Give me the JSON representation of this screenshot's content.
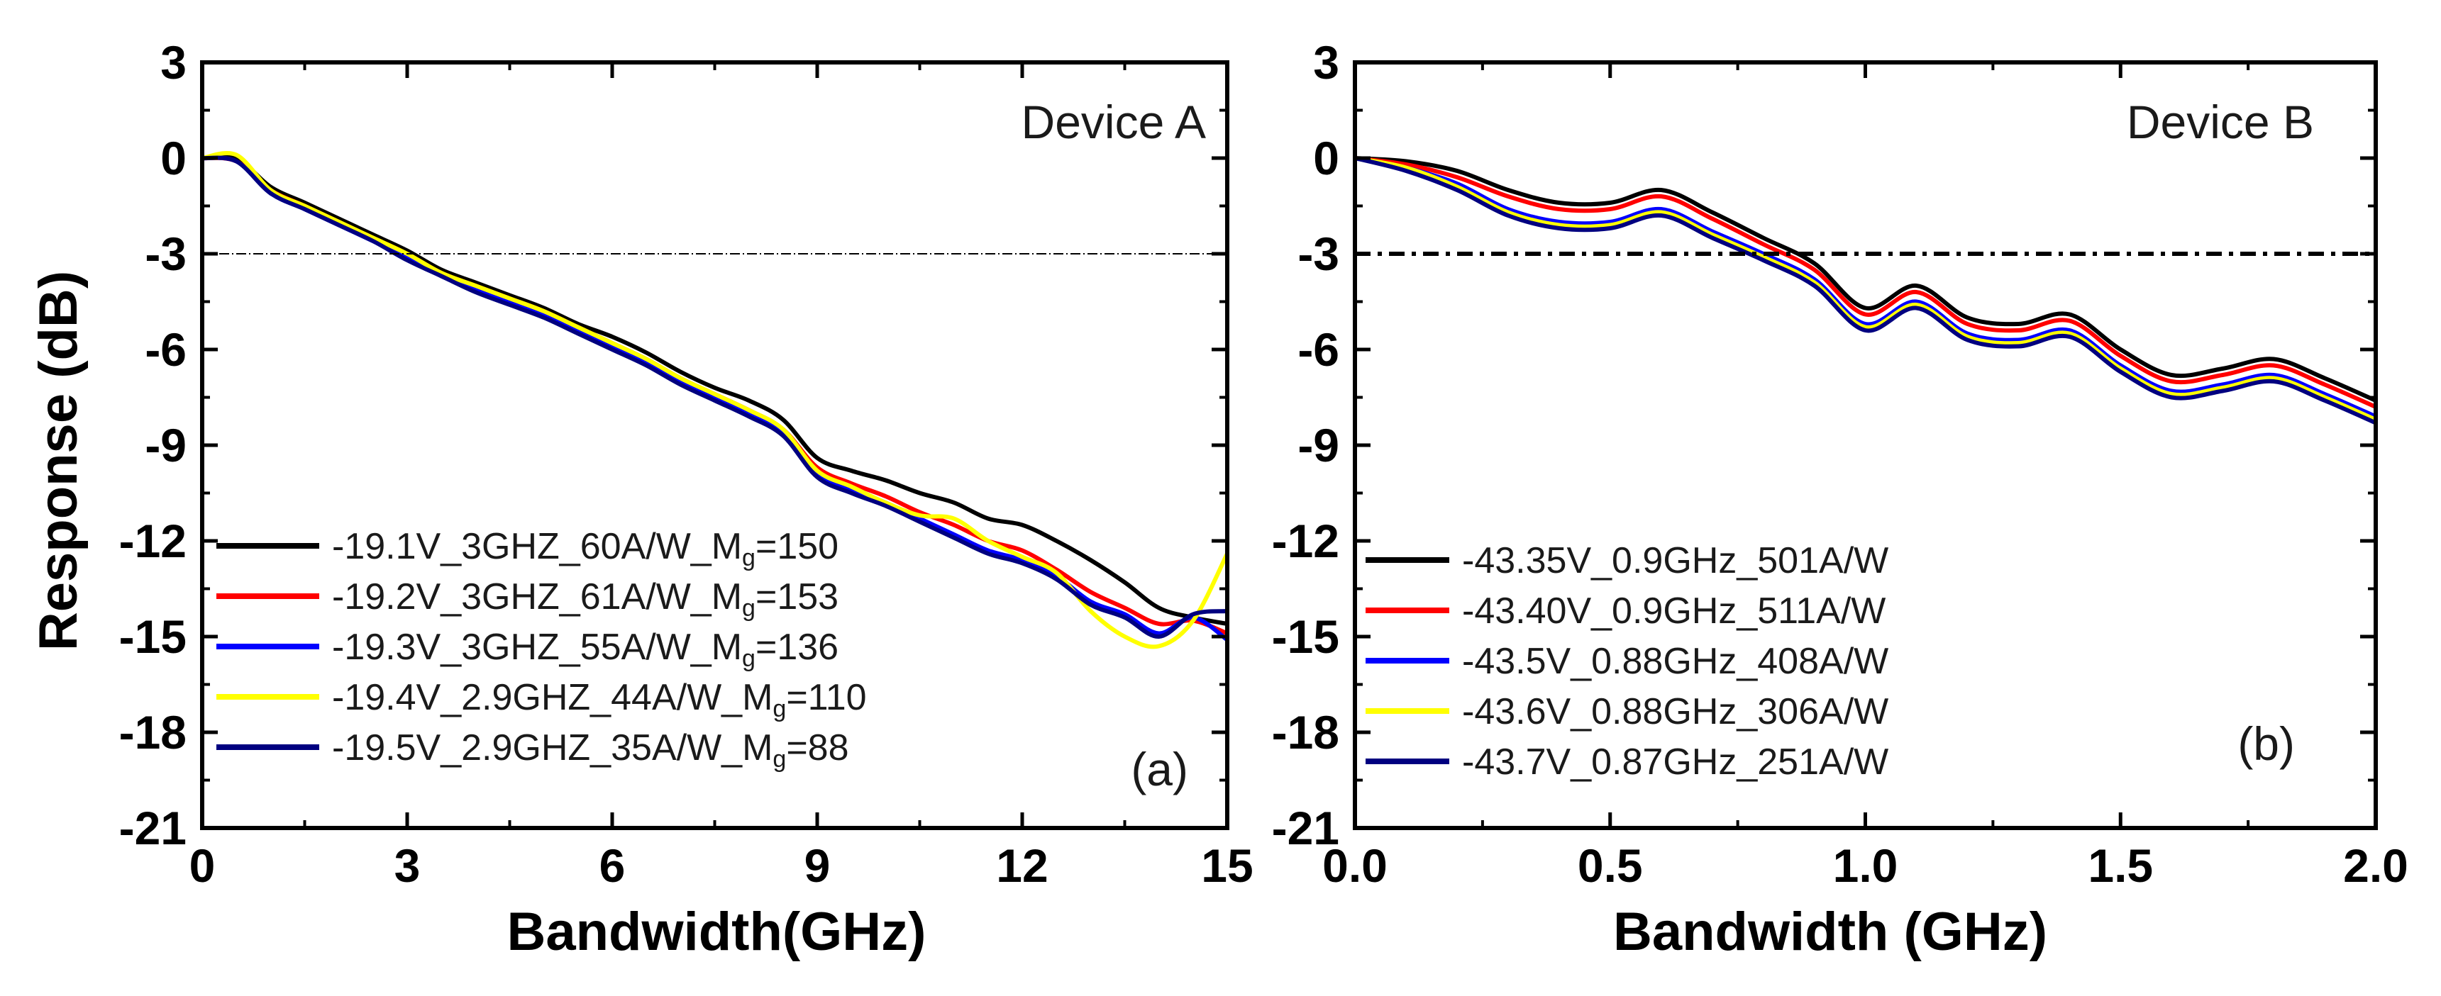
{
  "chart_data": [
    {
      "type": "line",
      "panel_label": "(a)",
      "annotation": "Device A",
      "xlabel": "Bandwidth(GHz)",
      "ylabel": "Response (dB)",
      "xlim": [
        0,
        15
      ],
      "ylim": [
        -21,
        3
      ],
      "xticks": [
        0,
        3,
        6,
        9,
        12,
        15
      ],
      "xtick_labels": [
        "0",
        "3",
        "6",
        "9",
        "12",
        "15"
      ],
      "yticks": [
        3,
        0,
        -3,
        -6,
        -9,
        -12,
        -15,
        -18,
        -21
      ],
      "ytick_labels": [
        "3",
        "0",
        "-3",
        "-6",
        "-9",
        "-12",
        "-15",
        "-18",
        "-21"
      ],
      "reference_line": {
        "y": -3,
        "style": "dash-dot-thin"
      },
      "legend_position": "bottom-left",
      "series": [
        {
          "name": "-19.1V_3GHZ_60A/W_M",
          "sub": "g",
          "tail": "=150",
          "color": "#000000",
          "x": [
            0,
            0.5,
            1,
            1.5,
            2,
            2.5,
            3,
            3.5,
            4,
            4.5,
            5,
            5.5,
            6,
            6.5,
            7,
            7.5,
            8,
            8.5,
            9,
            9.5,
            10,
            10.5,
            11,
            11.5,
            12,
            12.5,
            13,
            13.5,
            14,
            14.5,
            15
          ],
          "y": [
            0.0,
            0.0,
            -0.9,
            -1.4,
            -1.9,
            -2.4,
            -2.9,
            -3.5,
            -3.9,
            -4.3,
            -4.7,
            -5.2,
            -5.6,
            -6.1,
            -6.7,
            -7.2,
            -7.6,
            -8.2,
            -9.4,
            -9.8,
            -10.1,
            -10.5,
            -10.8,
            -11.3,
            -11.5,
            -12.0,
            -12.6,
            -13.3,
            -14.1,
            -14.4,
            -14.6
          ]
        },
        {
          "name": "-19.2V_3GHZ_61A/W_M",
          "sub": "g",
          "tail": "=153",
          "color": "#ff0000",
          "x": [
            0,
            0.5,
            1,
            1.5,
            2,
            2.5,
            3,
            3.5,
            4,
            4.5,
            5,
            5.5,
            6,
            6.5,
            7,
            7.5,
            8,
            8.5,
            9,
            9.5,
            10,
            10.5,
            11,
            11.5,
            12,
            12.5,
            13,
            13.5,
            14,
            14.5,
            15
          ],
          "y": [
            0.0,
            -0.1,
            -1.0,
            -1.5,
            -2.0,
            -2.5,
            -3.0,
            -3.6,
            -4.0,
            -4.4,
            -4.8,
            -5.3,
            -5.8,
            -6.3,
            -6.9,
            -7.4,
            -7.9,
            -8.5,
            -9.7,
            -10.2,
            -10.6,
            -11.1,
            -11.5,
            -12.0,
            -12.3,
            -12.9,
            -13.6,
            -14.1,
            -14.6,
            -14.5,
            -14.9
          ]
        },
        {
          "name": "-19.3V_3GHZ_55A/W_M",
          "sub": "g",
          "tail": "=136",
          "color": "#0000ff",
          "x": [
            0,
            0.5,
            1,
            1.5,
            2,
            2.5,
            3,
            3.5,
            4,
            4.5,
            5,
            5.5,
            6,
            6.5,
            7,
            7.5,
            8,
            8.5,
            9,
            9.5,
            10,
            10.5,
            11,
            11.5,
            12,
            12.5,
            13,
            13.5,
            14,
            14.5,
            15
          ],
          "y": [
            0.0,
            -0.1,
            -1.1,
            -1.6,
            -2.1,
            -2.6,
            -3.1,
            -3.7,
            -4.1,
            -4.5,
            -4.9,
            -5.4,
            -5.9,
            -6.4,
            -7.0,
            -7.5,
            -8.0,
            -8.6,
            -9.9,
            -10.4,
            -10.8,
            -11.3,
            -11.8,
            -12.3,
            -12.6,
            -13.1,
            -13.9,
            -14.3,
            -14.9,
            -14.4,
            -15.1
          ]
        },
        {
          "name": "-19.4V_2.9GHZ_44A/W_M",
          "sub": "g",
          "tail": "=110",
          "color": "#ffff00",
          "x": [
            0,
            0.5,
            1,
            1.5,
            2,
            2.5,
            3,
            3.5,
            4,
            4.5,
            5,
            5.5,
            6,
            6.5,
            7,
            7.5,
            8,
            8.5,
            9,
            9.5,
            10,
            10.5,
            11,
            11.5,
            12,
            12.5,
            13,
            13.5,
            14,
            14.5,
            15
          ],
          "y": [
            0.0,
            0.1,
            -1.0,
            -1.5,
            -2.0,
            -2.5,
            -3.0,
            -3.6,
            -4.0,
            -4.4,
            -4.8,
            -5.3,
            -5.8,
            -6.3,
            -6.9,
            -7.4,
            -7.9,
            -8.5,
            -9.8,
            -10.3,
            -10.8,
            -11.2,
            -11.3,
            -12.0,
            -12.5,
            -13.0,
            -14.2,
            -15.0,
            -15.3,
            -14.5,
            -12.4
          ]
        },
        {
          "name": "-19.5V_2.9GHZ_35A/W_M",
          "sub": "g",
          "tail": "=88",
          "color": "#000080",
          "x": [
            0,
            0.5,
            1,
            1.5,
            2,
            2.5,
            3,
            3.5,
            4,
            4.5,
            5,
            5.5,
            6,
            6.5,
            7,
            7.5,
            8,
            8.5,
            9,
            9.5,
            10,
            10.5,
            11,
            11.5,
            12,
            12.5,
            13,
            13.5,
            14,
            14.5,
            15
          ],
          "y": [
            0.0,
            -0.1,
            -1.1,
            -1.6,
            -2.1,
            -2.6,
            -3.2,
            -3.7,
            -4.2,
            -4.6,
            -5.0,
            -5.5,
            -6.0,
            -6.5,
            -7.1,
            -7.6,
            -8.1,
            -8.7,
            -10.0,
            -10.5,
            -10.9,
            -11.4,
            -11.9,
            -12.4,
            -12.7,
            -13.2,
            -14.0,
            -14.4,
            -15.0,
            -14.3,
            -14.2
          ]
        }
      ]
    },
    {
      "type": "line",
      "panel_label": "(b)",
      "annotation": "Device B",
      "xlabel": "Bandwidth (GHz)",
      "ylabel": "",
      "xlim": [
        0,
        2
      ],
      "ylim": [
        -21,
        3
      ],
      "xticks": [
        0,
        0.5,
        1,
        1.5,
        2
      ],
      "xtick_labels": [
        "0.0",
        "0.5",
        "1.0",
        "1.5",
        "2.0"
      ],
      "yticks": [
        3,
        0,
        -3,
        -6,
        -9,
        -12,
        -15,
        -18,
        -21
      ],
      "ytick_labels": [
        "3",
        "0",
        "-3",
        "-6",
        "-9",
        "-12",
        "-15",
        "-18",
        "-21"
      ],
      "reference_line": {
        "y": -3,
        "style": "dash-dot-thick"
      },
      "legend_position": "bottom-left",
      "series": [
        {
          "name": "-43.35V_0.9GHz_501A/W",
          "color": "#000000",
          "x": [
            0,
            0.1,
            0.2,
            0.3,
            0.4,
            0.5,
            0.6,
            0.7,
            0.8,
            0.9,
            1.0,
            1.1,
            1.2,
            1.3,
            1.4,
            1.5,
            1.6,
            1.7,
            1.8,
            1.9,
            2.0
          ],
          "y": [
            0.0,
            -0.1,
            -0.4,
            -1.0,
            -1.4,
            -1.4,
            -1.0,
            -1.7,
            -2.5,
            -3.3,
            -4.7,
            -4.0,
            -5.0,
            -5.2,
            -4.9,
            -6.0,
            -6.8,
            -6.6,
            -6.3,
            -6.9,
            -7.6
          ]
        },
        {
          "name": "-43.40V_0.9GHz_511A/W",
          "color": "#ff0000",
          "x": [
            0,
            0.1,
            0.2,
            0.3,
            0.4,
            0.5,
            0.6,
            0.7,
            0.8,
            0.9,
            1.0,
            1.1,
            1.2,
            1.3,
            1.4,
            1.5,
            1.6,
            1.7,
            1.8,
            1.9,
            2.0
          ],
          "y": [
            0.0,
            -0.2,
            -0.6,
            -1.2,
            -1.6,
            -1.6,
            -1.2,
            -1.9,
            -2.7,
            -3.5,
            -4.9,
            -4.2,
            -5.2,
            -5.4,
            -5.1,
            -6.2,
            -7.0,
            -6.8,
            -6.5,
            -7.1,
            -7.8
          ]
        },
        {
          "name": "-43.5V_0.88GHz_408A/W",
          "color": "#0000ff",
          "x": [
            0,
            0.1,
            0.2,
            0.3,
            0.4,
            0.5,
            0.6,
            0.7,
            0.8,
            0.9,
            1.0,
            1.1,
            1.2,
            1.3,
            1.4,
            1.5,
            1.6,
            1.7,
            1.8,
            1.9,
            2.0
          ],
          "y": [
            0.0,
            -0.3,
            -0.8,
            -1.6,
            -2.0,
            -2.0,
            -1.6,
            -2.3,
            -3.0,
            -3.8,
            -5.2,
            -4.5,
            -5.5,
            -5.7,
            -5.4,
            -6.5,
            -7.3,
            -7.1,
            -6.8,
            -7.4,
            -8.1
          ]
        },
        {
          "name": "-43.6V_0.88GHz_306A/W",
          "color": "#ffff00",
          "x": [
            0,
            0.1,
            0.2,
            0.3,
            0.4,
            0.5,
            0.6,
            0.7,
            0.8,
            0.9,
            1.0,
            1.1,
            1.2,
            1.3,
            1.4,
            1.5,
            1.6,
            1.7,
            1.8,
            1.9,
            2.0
          ],
          "y": [
            0.0,
            -0.3,
            -0.9,
            -1.7,
            -2.1,
            -2.1,
            -1.7,
            -2.4,
            -3.1,
            -3.9,
            -5.3,
            -4.6,
            -5.6,
            -5.8,
            -5.5,
            -6.6,
            -7.4,
            -7.2,
            -6.9,
            -7.5,
            -8.2
          ]
        },
        {
          "name": "-43.7V_0.87GHz_251A/W",
          "color": "#000080",
          "x": [
            0,
            0.1,
            0.2,
            0.3,
            0.4,
            0.5,
            0.6,
            0.7,
            0.8,
            0.9,
            1.0,
            1.1,
            1.2,
            1.3,
            1.4,
            1.5,
            1.6,
            1.7,
            1.8,
            1.9,
            2.0
          ],
          "y": [
            0.0,
            -0.4,
            -1.0,
            -1.8,
            -2.2,
            -2.2,
            -1.8,
            -2.5,
            -3.2,
            -4.0,
            -5.4,
            -4.7,
            -5.7,
            -5.9,
            -5.6,
            -6.7,
            -7.5,
            -7.3,
            -7.0,
            -7.6,
            -8.3
          ]
        }
      ]
    }
  ]
}
